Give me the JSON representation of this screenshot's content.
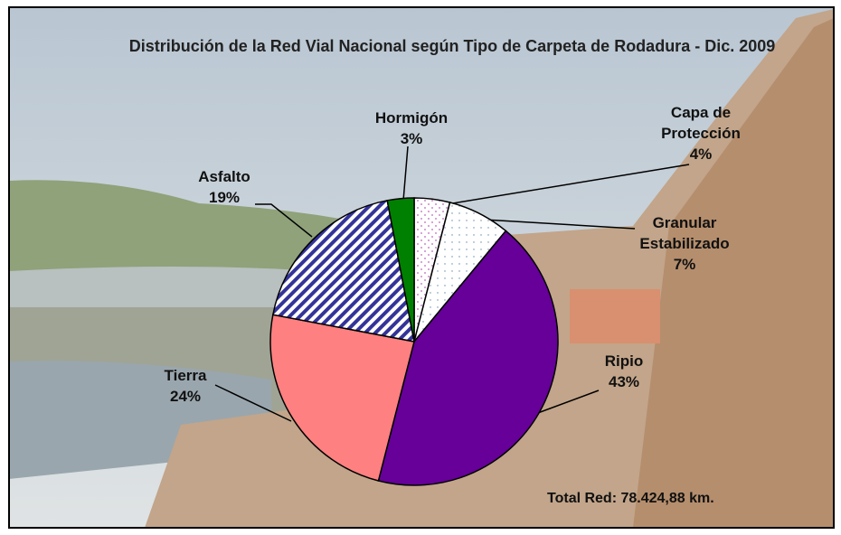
{
  "chart_data": {
    "type": "pie",
    "title": "Distribución de la Red Vial Nacional según Tipo de Carpeta de Rodadura - Dic. 2009",
    "categories": [
      "Capa de Protección",
      "Granular Estabilizado",
      "Ripio",
      "Tierra",
      "Asfalto",
      "Hormigón"
    ],
    "values": [
      4,
      7,
      43,
      24,
      19,
      3
    ],
    "value_labels": [
      "4%",
      "7%",
      "43%",
      "24%",
      "19%",
      "3%"
    ],
    "colors": [
      "#cc88cc",
      "#ffffff",
      "#660099",
      "#ff8080",
      "#333399",
      "#008000"
    ],
    "annotation": "Total Red: 78.424,88 km."
  }
}
